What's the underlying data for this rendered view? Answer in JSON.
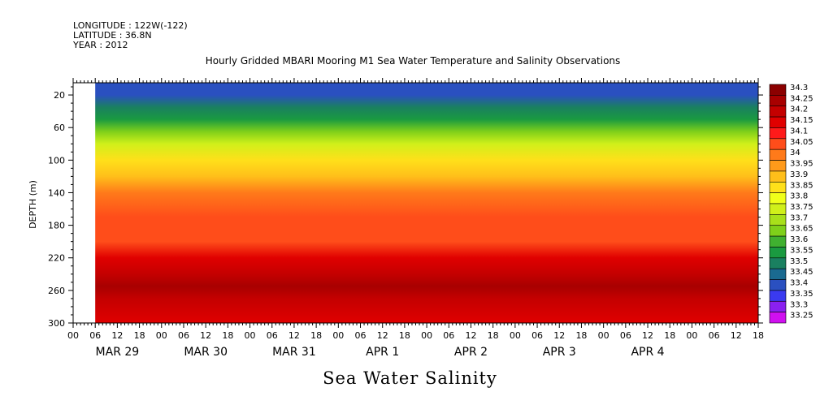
{
  "meta": {
    "longitude": "LONGITUDE : 122W(-122)",
    "latitude": "LATITUDE : 36.8N",
    "year": "YEAR : 2012"
  },
  "chart_data": {
    "type": "heatmap",
    "title": "Hourly Gridded MBARI Mooring M1 Sea Water Temperature and Salinity Observations",
    "ylabel": "DEPTH (m)",
    "xlabel": "Sea Water Salinity",
    "ylim": [
      300,
      5
    ],
    "y_ticks": [
      20,
      60,
      100,
      140,
      180,
      220,
      260,
      300
    ],
    "x_hour_ticks": [
      "00",
      "06",
      "12",
      "18",
      "00",
      "06",
      "12",
      "18",
      "00",
      "06",
      "12",
      "18",
      "00",
      "06",
      "12",
      "18",
      "00",
      "06",
      "12",
      "18",
      "00",
      "06",
      "12",
      "18",
      "00",
      "06",
      "12",
      "18",
      "00",
      "06",
      "12",
      "18"
    ],
    "x_day_labels": [
      "MAR 29",
      "MAR 30",
      "MAR 31",
      "APR  1",
      "APR  2",
      "APR  3",
      "APR  4"
    ],
    "x_range_hours": [
      0,
      186
    ],
    "data_start_hour": 6,
    "colorbar": {
      "levels": [
        "34.3",
        "34.25",
        "34.2",
        "34.15",
        "34.1",
        "34.05",
        "34",
        "33.95",
        "33.9",
        "33.85",
        "33.8",
        "33.75",
        "33.7",
        "33.65",
        "33.6",
        "33.55",
        "33.5",
        "33.45",
        "33.4",
        "33.35",
        "33.3",
        "33.25"
      ],
      "colors": [
        "#8b0000",
        "#a80000",
        "#c40000",
        "#e00000",
        "#ff1a1a",
        "#ff4d1a",
        "#ff7a1a",
        "#ff9a1a",
        "#ffbf1a",
        "#ffe01a",
        "#f0ff1a",
        "#d0f01a",
        "#a8e01a",
        "#7fd01a",
        "#40b030",
        "#1a9a40",
        "#1a8060",
        "#1a6a90",
        "#2a50c0",
        "#3a3af0",
        "#8a20f0",
        "#d010f0"
      ]
    },
    "depth_profile": [
      {
        "depth": 10,
        "salinity": 33.4
      },
      {
        "depth": 20,
        "salinity": 33.42
      },
      {
        "depth": 35,
        "salinity": 33.5
      },
      {
        "depth": 50,
        "salinity": 33.58
      },
      {
        "depth": 65,
        "salinity": 33.68
      },
      {
        "depth": 80,
        "salinity": 33.78
      },
      {
        "depth": 100,
        "salinity": 33.86
      },
      {
        "depth": 120,
        "salinity": 33.94
      },
      {
        "depth": 140,
        "salinity": 34.02
      },
      {
        "depth": 170,
        "salinity": 34.05
      },
      {
        "depth": 200,
        "salinity": 34.08
      },
      {
        "depth": 220,
        "salinity": 34.15
      },
      {
        "depth": 240,
        "salinity": 34.22
      },
      {
        "depth": 255,
        "salinity": 34.26
      },
      {
        "depth": 270,
        "salinity": 34.22
      },
      {
        "depth": 300,
        "salinity": 34.18
      }
    ]
  }
}
